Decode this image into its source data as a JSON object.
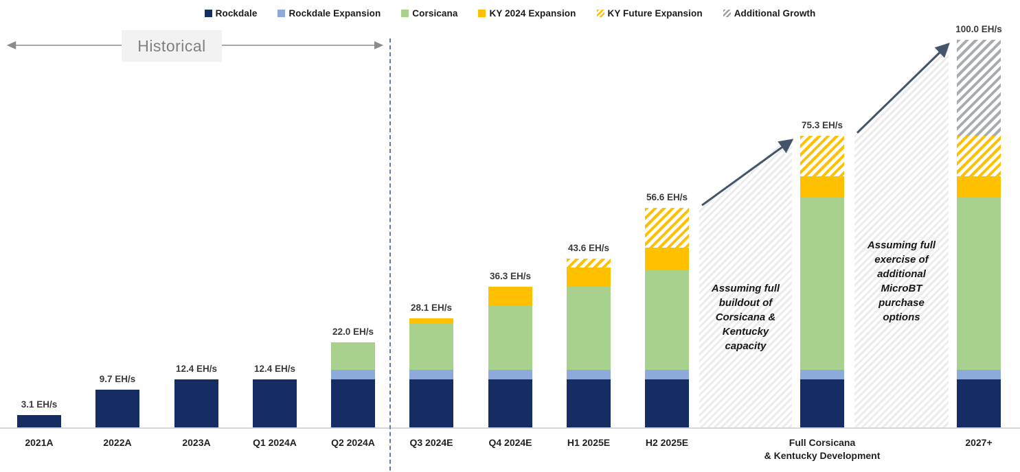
{
  "page": {
    "background": "#ffffff"
  },
  "legend": {
    "items": [
      {
        "key": "rockdale",
        "label": "Rockdale",
        "swatch": "solid",
        "color": "#152d62"
      },
      {
        "key": "rockdale-expansion",
        "label": "Rockdale Expansion",
        "swatch": "solid",
        "color": "#8eaadb"
      },
      {
        "key": "corsicana",
        "label": "Corsicana",
        "swatch": "solid",
        "color": "#a9d18e"
      },
      {
        "key": "ky-2024-expansion",
        "label": "KY 2024 Expansion",
        "swatch": "solid",
        "color": "#ffc000"
      },
      {
        "key": "ky-future-expansion",
        "label": "KY Future Expansion",
        "swatch": "hatch-gold",
        "color": "#ffc000"
      },
      {
        "key": "additional-growth",
        "label": "Additional Growth",
        "swatch": "hatch-gray",
        "color": "#a6a6a6"
      }
    ]
  },
  "historical": {
    "label": "Historical"
  },
  "annotations": {
    "zones": [
      {
        "lines": [
          "Assuming full",
          "buildout of",
          "Corsicana &",
          "Kentucky",
          "capacity"
        ],
        "from_index": 8,
        "to_index": 9
      },
      {
        "lines": [
          "Assuming full",
          "exercise of",
          "additional",
          "MicroBT",
          "purchase",
          "options"
        ],
        "from_index": 9,
        "to_index": 10
      }
    ]
  },
  "chart_data": {
    "type": "bar",
    "stacked": true,
    "unit": "EH/s",
    "grid": false,
    "legend_position": "top",
    "ylim": [
      0,
      100
    ],
    "categories": [
      "2021A",
      "2022A",
      "2023A",
      "Q1 2024A",
      "Q2 2024A",
      "Q3 2024E",
      "Q4 2024E",
      "H1 2025E",
      "H2 2025E",
      "Full Corsicana\n& Kentucky Development",
      "2027+"
    ],
    "series": [
      {
        "name": "Rockdale",
        "color": "#152d62",
        "pattern": "solid",
        "values": [
          3.1,
          9.7,
          12.4,
          12.4,
          12.4,
          12.4,
          12.4,
          12.4,
          12.4,
          12.4,
          12.4
        ]
      },
      {
        "name": "Rockdale Expansion",
        "color": "#8eaadb",
        "pattern": "solid",
        "values": [
          0,
          0,
          0,
          0,
          2.5,
          2.5,
          2.5,
          2.5,
          2.5,
          2.5,
          2.5
        ]
      },
      {
        "name": "Corsicana",
        "color": "#a9d18e",
        "pattern": "solid",
        "values": [
          0,
          0,
          0,
          0,
          7.1,
          11.8,
          16.6,
          21.3,
          25.7,
          44.6,
          44.6
        ]
      },
      {
        "name": "KY 2024 Expansion",
        "color": "#ffc000",
        "pattern": "solid",
        "values": [
          0,
          0,
          0,
          0,
          0,
          1.4,
          4.8,
          5.1,
          5.7,
          5.3,
          5.3
        ]
      },
      {
        "name": "KY Future Expansion",
        "color": "#ffc000",
        "pattern": "hatch-gold",
        "values": [
          0,
          0,
          0,
          0,
          0,
          0,
          0,
          2.3,
          10.3,
          10.5,
          10.4
        ]
      },
      {
        "name": "Additional Growth",
        "color": "#a6a6a6",
        "pattern": "hatch-gray",
        "values": [
          0,
          0,
          0,
          0,
          0,
          0,
          0,
          0,
          0,
          0,
          24.8
        ]
      }
    ],
    "totals": [
      3.1,
      9.7,
      12.4,
      12.4,
      22.0,
      28.1,
      36.3,
      43.6,
      56.6,
      75.3,
      100.0
    ],
    "total_labels": [
      "3.1 EH/s",
      "9.7 EH/s",
      "12.4 EH/s",
      "12.4 EH/s",
      "22.0 EH/s",
      "28.1 EH/s",
      "36.3 EH/s",
      "43.6 EH/s",
      "56.6 EH/s",
      "75.3 EH/s",
      "100.0 EH/s"
    ]
  }
}
